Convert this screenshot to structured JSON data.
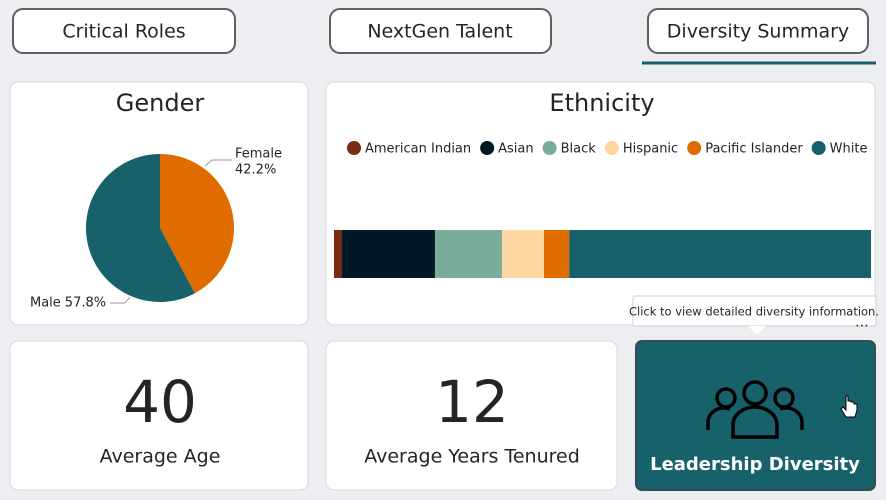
{
  "tabs": [
    "Critical Roles",
    "NextGen Talent",
    "Diversity Summary"
  ],
  "gender": {
    "type": "pie",
    "title": "Gender",
    "categories": [
      "Female",
      "Male"
    ],
    "values": [
      42.2,
      57.8
    ],
    "value_labels": [
      "42.2%",
      "57.8%"
    ],
    "colors": [
      "#e06c00",
      "#17616b"
    ]
  },
  "ethnicity": {
    "type": "stacked-bar",
    "title": "Ethnicity",
    "xlim": [
      0,
      100
    ],
    "series": [
      {
        "name": "American Indian",
        "color": "#7a2b12",
        "values": [
          1.5
        ]
      },
      {
        "name": "Asian",
        "color": "#001726",
        "values": [
          17.3
        ]
      },
      {
        "name": "Black",
        "color": "#7aae9a",
        "values": [
          12.5
        ]
      },
      {
        "name": "Hispanic",
        "color": "#fdd6a2",
        "values": [
          7.8
        ]
      },
      {
        "name": "Pacific Islander",
        "color": "#e06c00",
        "values": [
          4.7
        ]
      },
      {
        "name": "White",
        "color": "#17616b",
        "values": [
          56.2
        ]
      }
    ]
  },
  "cards": [
    {
      "value": 40,
      "label": "Average Age"
    },
    {
      "value": 12,
      "label": "Average Years Tenured"
    }
  ],
  "button": {
    "label": "Leadership Diversity",
    "tooltip": "Click to view detailed diversity information."
  }
}
